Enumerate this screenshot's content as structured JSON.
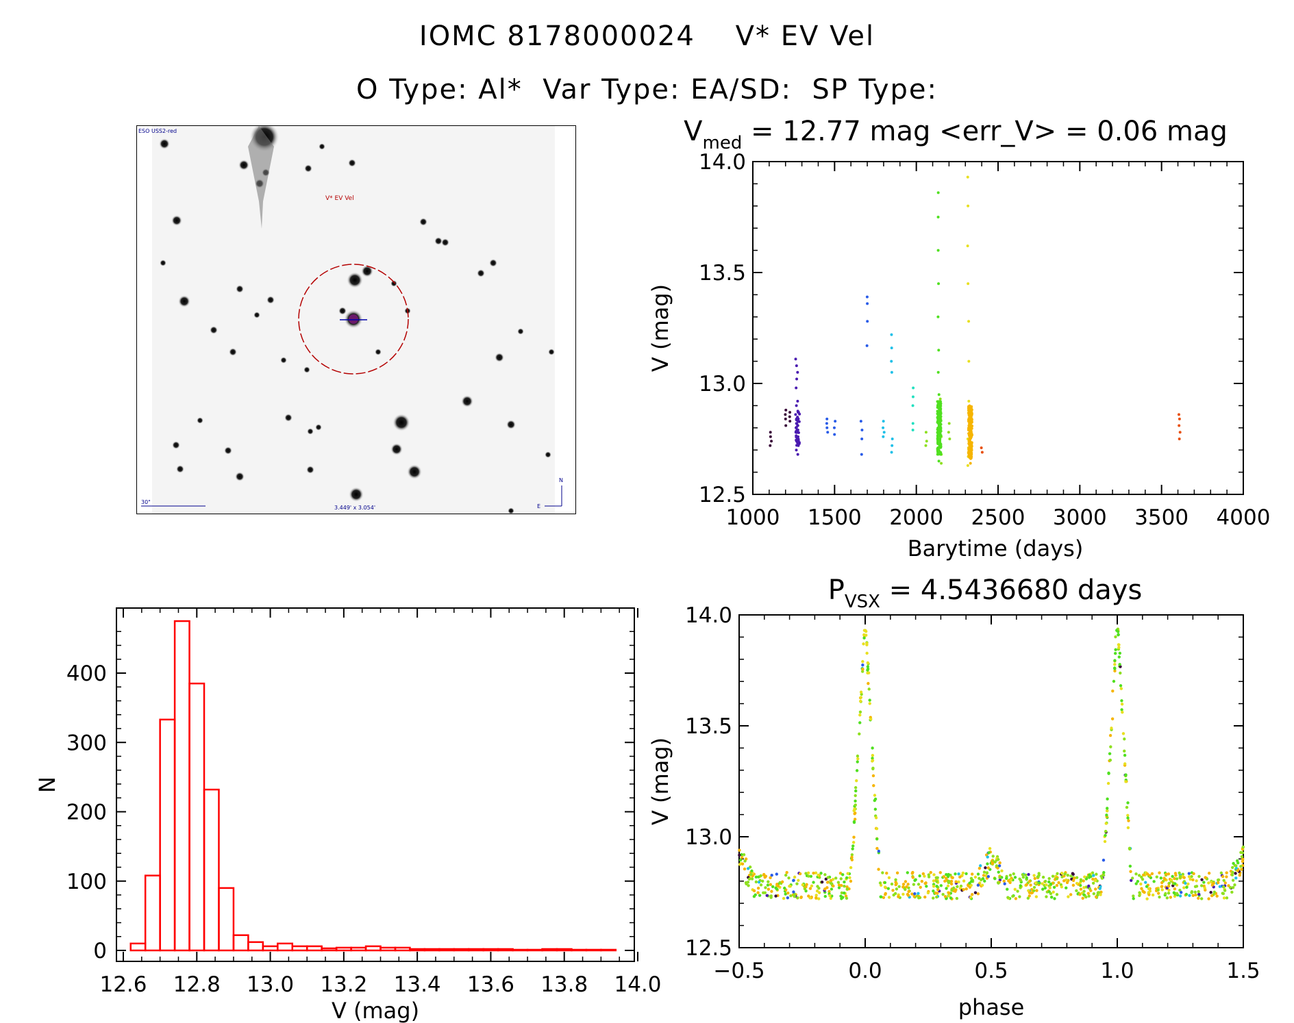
{
  "header": {
    "line1": "IOMC 8178000024    V* EV Vel",
    "line2": "O Type: Al*  Var Type: EA/SD:  SP Type:"
  },
  "finder": {
    "survey_label": "ESO USS2-red",
    "target_label": "V* EV Vel",
    "scale_label": "30\"",
    "fov_label": "3.449' x 3.054'",
    "compass_n": "N",
    "compass_e": "E"
  },
  "colors": {
    "hist": "#ff0000",
    "target_circle": "#b40000",
    "marker": "#0000aa",
    "phase_palette": [
      "#3a0a3a",
      "#4a1ab0",
      "#2a5ce8",
      "#1fc0e8",
      "#23e0c0",
      "#50e020",
      "#8ee020",
      "#e8e020",
      "#f6b500",
      "#e85010"
    ]
  },
  "lc_title": {
    "prefix": "V",
    "sub": "med",
    "rest": " = 12.77 mag <err_V> = 0.06 mag"
  },
  "phase_title": {
    "prefix": "P",
    "sub": "VSX",
    "rest": " = 4.5436680 days"
  },
  "chart_data": [
    {
      "name": "light_curve",
      "type": "scatter",
      "title": "V_med = 12.77 mag <err_V> = 0.06 mag",
      "xlabel": "Barytime (days)",
      "ylabel": "V (mag)",
      "xlim": [
        1000,
        4000
      ],
      "ylim": [
        14.0,
        12.5
      ],
      "xticks": [
        "1000",
        "1500",
        "2000",
        "2500",
        "3000",
        "3500",
        "4000"
      ],
      "yticks": [
        "12.5",
        "13.0",
        "13.5",
        "14.0"
      ],
      "groups": [
        {
          "x": 1110,
          "color": "#3a0a3a",
          "mags": [
            12.72,
            12.74,
            12.76,
            12.78
          ]
        },
        {
          "x": 1200,
          "color": "#3a0a3a",
          "mags": [
            12.81,
            12.84,
            12.86,
            12.88
          ]
        },
        {
          "x": 1225,
          "color": "#3a0a3a",
          "mags": [
            12.83,
            12.85,
            12.87
          ]
        },
        {
          "x": 1265,
          "color": "#4a1ab0",
          "mags": [
            12.7,
            12.74,
            12.78,
            12.8,
            12.82,
            12.84,
            12.86,
            12.9,
            12.98,
            13.02,
            13.08,
            13.11
          ]
        },
        {
          "x": 1275,
          "color": "#4a1ab0",
          "mags": [
            12.68,
            12.72,
            12.76,
            12.79,
            12.81,
            12.84,
            12.87,
            12.92,
            13.05
          ]
        },
        {
          "x": 1455,
          "color": "#2a5ce8",
          "mags": [
            12.78,
            12.8,
            12.82,
            12.84
          ]
        },
        {
          "x": 1500,
          "color": "#2a5ce8",
          "mags": [
            12.77,
            12.8,
            12.83
          ]
        },
        {
          "x": 1665,
          "color": "#2a5ce8",
          "mags": [
            12.68,
            12.75,
            12.79,
            12.83
          ]
        },
        {
          "x": 1700,
          "color": "#2a5ce8",
          "mags": [
            13.17,
            13.28,
            13.36,
            13.39
          ]
        },
        {
          "x": 1800,
          "color": "#1fc0e8",
          "mags": [
            12.76,
            12.78,
            12.8,
            12.83
          ]
        },
        {
          "x": 1850,
          "color": "#1fc0e8",
          "mags": [
            12.69,
            12.72,
            12.75,
            13.05,
            13.1,
            13.16,
            13.22
          ]
        },
        {
          "x": 1980,
          "color": "#23e0c0",
          "mags": [
            12.79,
            12.82,
            12.9,
            12.94,
            12.98
          ]
        },
        {
          "x": 2060,
          "color": "#8ee020",
          "mags": [
            12.72,
            12.74,
            12.78
          ]
        },
        {
          "x": 2135,
          "color": "#50e020",
          "mags": [
            12.65,
            12.7,
            12.75,
            12.8,
            12.85,
            12.9,
            12.95,
            13.05,
            13.15,
            13.3,
            13.45,
            13.6,
            13.75,
            13.86
          ]
        },
        {
          "x": 2150,
          "color": "#8ee020",
          "mags": [
            12.64,
            12.68,
            12.72,
            12.76,
            12.8,
            12.84,
            12.88,
            12.93
          ]
        },
        {
          "x": 2200,
          "color": "#8ee020",
          "mags": [
            12.75,
            12.78,
            12.82
          ]
        },
        {
          "x": 2318,
          "color": "#e8e020",
          "mags": [
            12.63,
            12.67,
            12.71,
            12.75,
            12.79,
            12.83,
            12.87,
            12.92,
            13.1,
            13.28,
            13.45,
            13.62,
            13.8,
            13.93
          ]
        },
        {
          "x": 2335,
          "color": "#f6b500",
          "mags": [
            12.64,
            12.68,
            12.72,
            12.76,
            12.8,
            12.84,
            12.88
          ]
        },
        {
          "x": 2400,
          "color": "#e85010",
          "mags": [
            12.69,
            12.71
          ]
        },
        {
          "x": 3610,
          "color": "#e85010",
          "mags": [
            12.75,
            12.78,
            12.81,
            12.84,
            12.86
          ]
        }
      ]
    },
    {
      "name": "histogram",
      "type": "bar",
      "xlabel": "V (mag)",
      "ylabel": "N",
      "xlim": [
        12.6,
        14.0
      ],
      "ylim": [
        0,
        480
      ],
      "xticks": [
        "12.6",
        "12.8",
        "13.0",
        "13.2",
        "13.4",
        "13.6",
        "13.8",
        "14.0"
      ],
      "yticks": [
        "0",
        "100",
        "200",
        "300",
        "400"
      ],
      "bin_start": 12.62,
      "bin_width": 0.04,
      "values": [
        10,
        108,
        333,
        475,
        385,
        232,
        90,
        22,
        12,
        6,
        10,
        6,
        6,
        3,
        4,
        4,
        6,
        4,
        4,
        2,
        2,
        2,
        2,
        2,
        2,
        2,
        1,
        1,
        2,
        2,
        1,
        1,
        1
      ]
    },
    {
      "name": "phased",
      "type": "scatter",
      "title": "P_VSX = 4.5436680 days",
      "xlabel": "phase",
      "ylabel": "V (mag)",
      "xlim": [
        -0.5,
        1.5
      ],
      "ylim": [
        14.0,
        12.5
      ],
      "xticks": [
        "−0.5",
        "0.0",
        "0.5",
        "1.0",
        "1.5"
      ],
      "yticks": [
        "12.5",
        "13.0",
        "13.5",
        "14.0"
      ],
      "period_days": 4.543668,
      "baseline_mag": 12.78,
      "primary_depth_mag": 14.0,
      "secondary_depth_mag": 12.9
    }
  ]
}
